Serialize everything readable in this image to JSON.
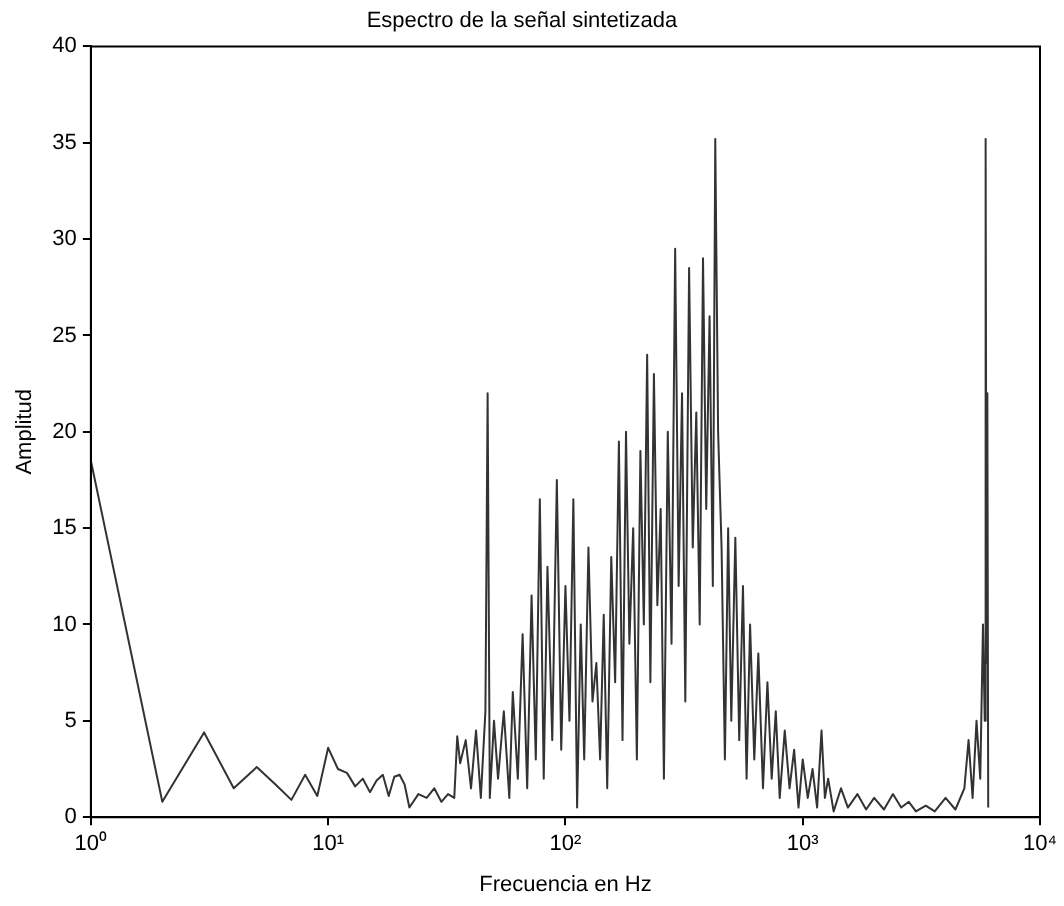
{
  "chart_data": {
    "type": "line",
    "title": "Espectro de la señal sintetizada",
    "xlabel": "Frecuencia en Hz",
    "ylabel": "Amplitud",
    "log": "x",
    "xlim": [
      1,
      10000
    ],
    "xticks": [
      {
        "value": 1,
        "label": "10⁰"
      },
      {
        "value": 10,
        "label": "10¹"
      },
      {
        "value": 100,
        "label": "10²"
      },
      {
        "value": 1000,
        "label": "10³"
      },
      {
        "value": 10000,
        "label": "10⁴"
      }
    ],
    "ylim": [
      0,
      40
    ],
    "yticks": [
      0,
      5,
      10,
      15,
      20,
      25,
      30,
      35,
      40
    ],
    "grid": false,
    "legend": false,
    "marker": "none",
    "line_style": "solid",
    "x": [
      1,
      2,
      3,
      4,
      5,
      6,
      7,
      8,
      9,
      10,
      11,
      12,
      13,
      14,
      15,
      16,
      17,
      18,
      19,
      20,
      21,
      22,
      24,
      26,
      28,
      30,
      32,
      34,
      35,
      36,
      38,
      40,
      42,
      44,
      46,
      47,
      48,
      50,
      52,
      55,
      58,
      60,
      63,
      66,
      69,
      72,
      75,
      78,
      81,
      84,
      88,
      92,
      96,
      100,
      104,
      108,
      112,
      116,
      120,
      125,
      130,
      135,
      140,
      145,
      150,
      156,
      162,
      168,
      174,
      180,
      186,
      193,
      200,
      207,
      214,
      221,
      228,
      236,
      244,
      252,
      260,
      270,
      280,
      290,
      300,
      310,
      320,
      332,
      344,
      356,
      368,
      380,
      392,
      405,
      418,
      428,
      440,
      455,
      470,
      485,
      500,
      520,
      540,
      560,
      580,
      600,
      625,
      650,
      680,
      710,
      740,
      770,
      800,
      840,
      880,
      920,
      960,
      1000,
      1050,
      1100,
      1150,
      1200,
      1240,
      1280,
      1350,
      1450,
      1550,
      1700,
      1850,
      2000,
      2200,
      2400,
      2600,
      2800,
      3000,
      3300,
      3600,
      4000,
      4400,
      4800,
      5000,
      5200,
      5400,
      5600,
      5750,
      5850,
      5900,
      5950,
      6000,
      6050
    ],
    "series": [
      {
        "color": "#333333",
        "values": [
          18.5,
          0.8,
          4.4,
          1.5,
          2.6,
          1.7,
          0.9,
          2.2,
          1.1,
          3.6,
          2.5,
          2.3,
          1.6,
          2.0,
          1.3,
          1.9,
          2.2,
          1.1,
          2.1,
          2.2,
          1.7,
          0.5,
          1.2,
          1.0,
          1.5,
          0.8,
          1.2,
          1.0,
          4.2,
          2.8,
          4.0,
          1.5,
          4.5,
          1.0,
          5.5,
          22,
          1.0,
          5.0,
          2.0,
          5.5,
          1.0,
          6.5,
          2.0,
          9.5,
          1.5,
          11.5,
          3.0,
          16.5,
          2.0,
          13.0,
          4.0,
          17.5,
          3.5,
          12.0,
          5.0,
          16.5,
          0.5,
          10.0,
          3.0,
          14.0,
          6.0,
          8.0,
          3.0,
          10.5,
          1.5,
          13.5,
          7.0,
          19.5,
          4.0,
          20.0,
          9.0,
          15.0,
          3.0,
          19.0,
          10.0,
          24.0,
          7.0,
          23.0,
          11.0,
          16.0,
          2.0,
          20.0,
          9.0,
          29.5,
          12.0,
          22.0,
          6.0,
          28.5,
          14.0,
          21.0,
          10.0,
          29.0,
          16.0,
          26.0,
          12.0,
          35.2,
          20.0,
          14.0,
          3.0,
          15.0,
          5.0,
          14.5,
          4.0,
          12.0,
          2.0,
          10.0,
          3.0,
          8.5,
          1.5,
          7.0,
          2.0,
          5.5,
          1.0,
          4.5,
          1.5,
          3.5,
          0.5,
          3.0,
          1.0,
          2.5,
          0.5,
          4.5,
          1.0,
          2.0,
          0.3,
          1.5,
          0.5,
          1.2,
          0.4,
          1.0,
          0.4,
          1.2,
          0.5,
          0.8,
          0.3,
          0.6,
          0.3,
          1.0,
          0.4,
          1.5,
          4.0,
          1.0,
          5.0,
          2.0,
          10.0,
          5.0,
          35.2,
          8.0,
          22.0,
          0.5
        ]
      }
    ]
  }
}
